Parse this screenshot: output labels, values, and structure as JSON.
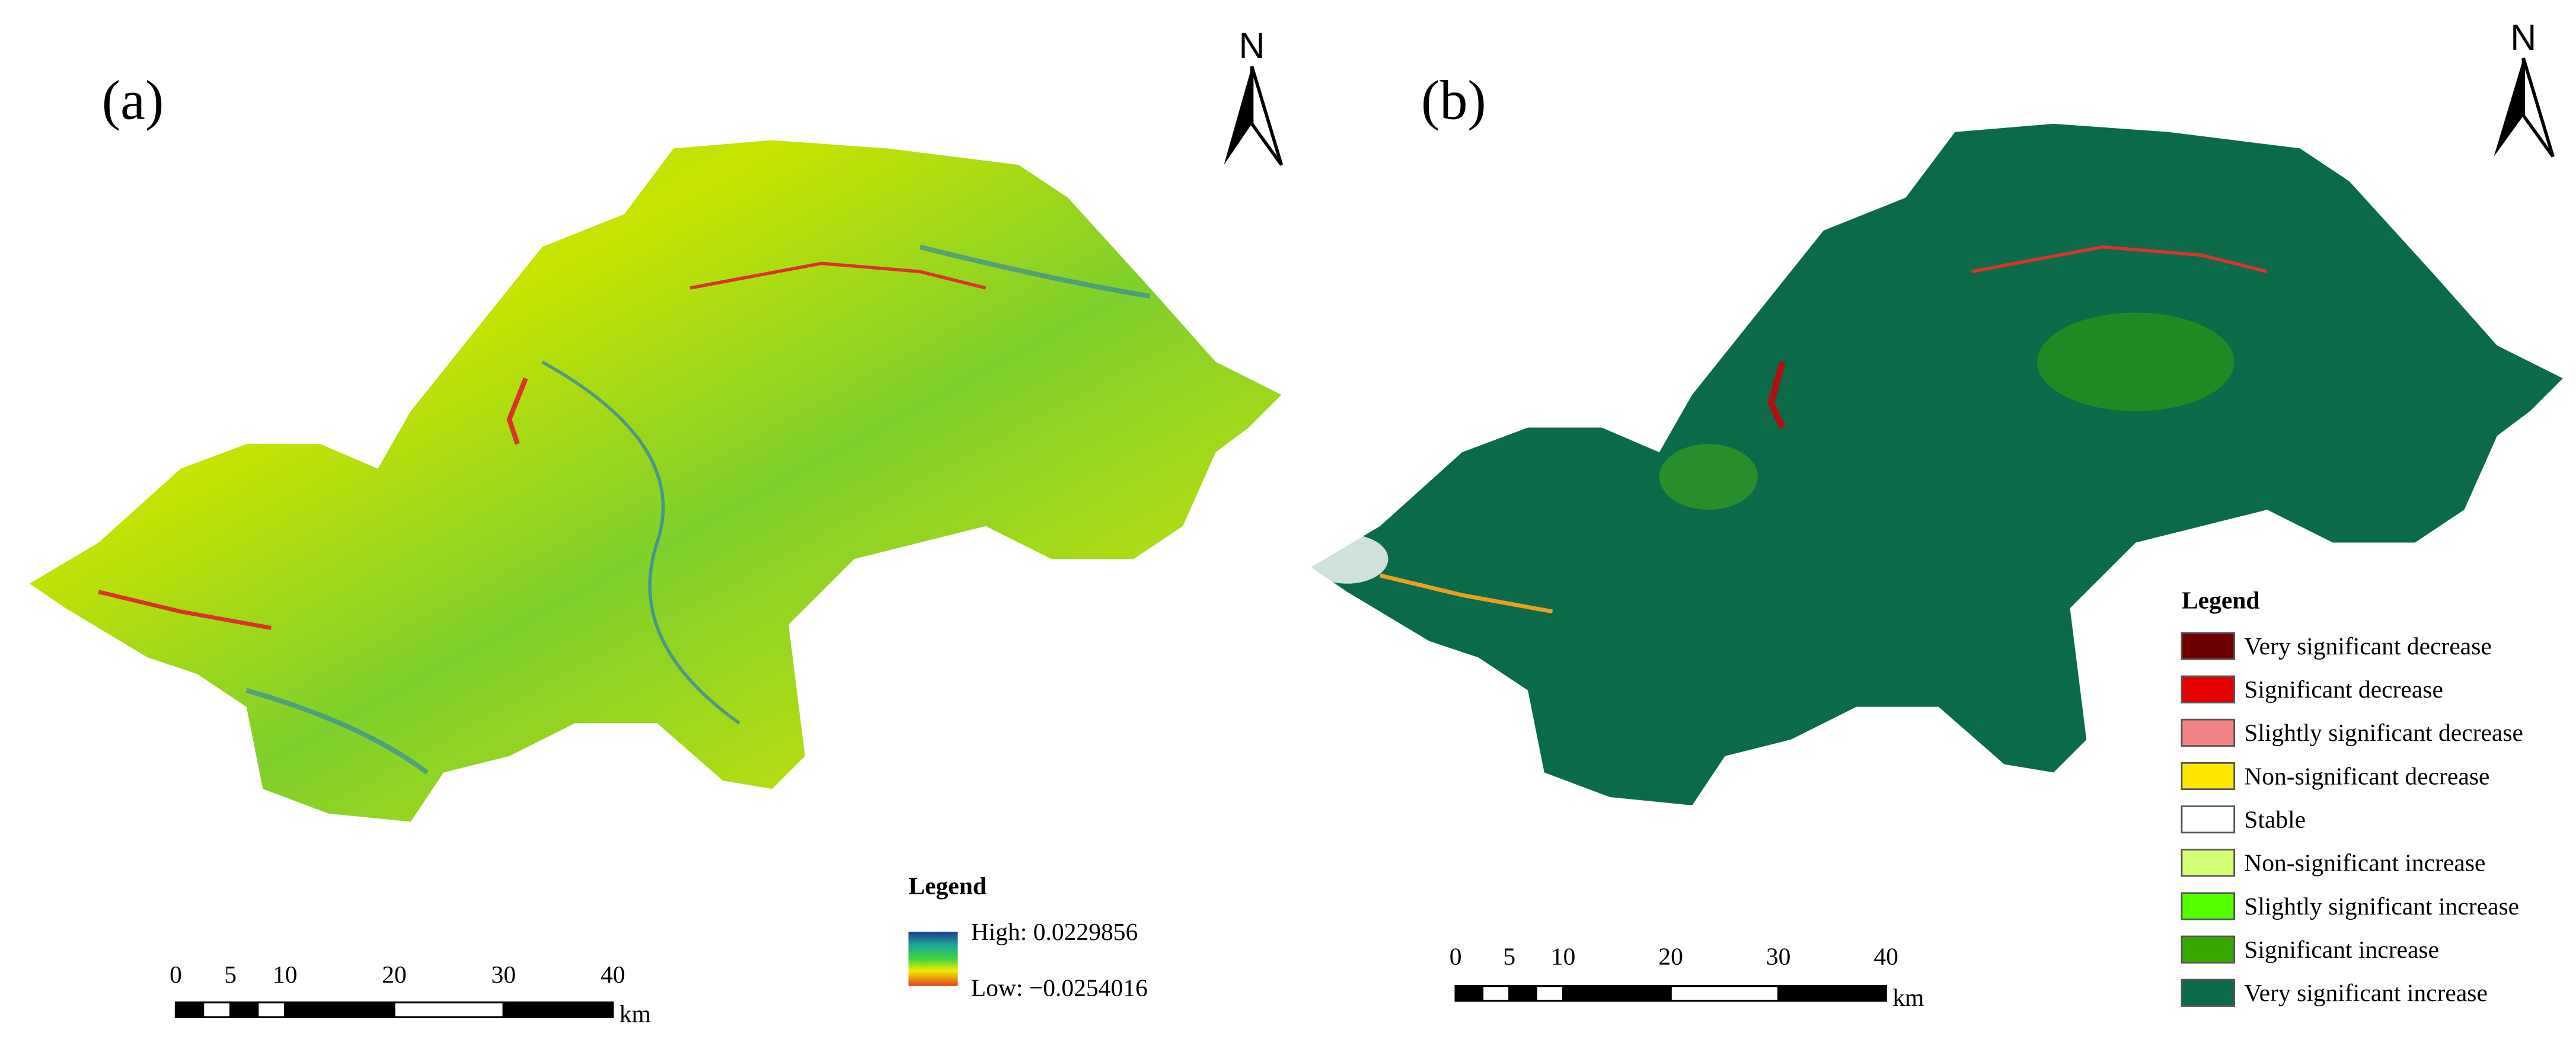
{
  "panels": [
    {
      "label": "(a)",
      "north": "N",
      "legend": {
        "title": "Legend",
        "high": "High: 0.0229856",
        "low": "Low: −0.0254016"
      },
      "scale_bar": {
        "ticks": [
          0,
          5,
          10,
          20,
          30,
          40
        ],
        "unit": "km"
      }
    },
    {
      "label": "(b)",
      "north": "N",
      "legend": {
        "title": "Legend",
        "items": [
          {
            "label": "Very significant decrease",
            "color": "#6e0000"
          },
          {
            "label": "Significant decrease",
            "color": "#e60000"
          },
          {
            "label": "Slightly significant decrease",
            "color": "#f48484"
          },
          {
            "label": "Non-significant decrease",
            "color": "#ffe600"
          },
          {
            "label": "Stable",
            "color": "#ffffff"
          },
          {
            "label": "Non-significant increase",
            "color": "#d2ff73"
          },
          {
            "label": "Slightly significant increase",
            "color": "#55ff00"
          },
          {
            "label": "Significant increase",
            "color": "#38a800"
          },
          {
            "label": "Very significant increase",
            "color": "#0b6b48"
          }
        ]
      },
      "scale_bar": {
        "ticks": [
          0,
          5,
          10,
          20,
          30,
          40
        ],
        "unit": "km"
      }
    }
  ]
}
